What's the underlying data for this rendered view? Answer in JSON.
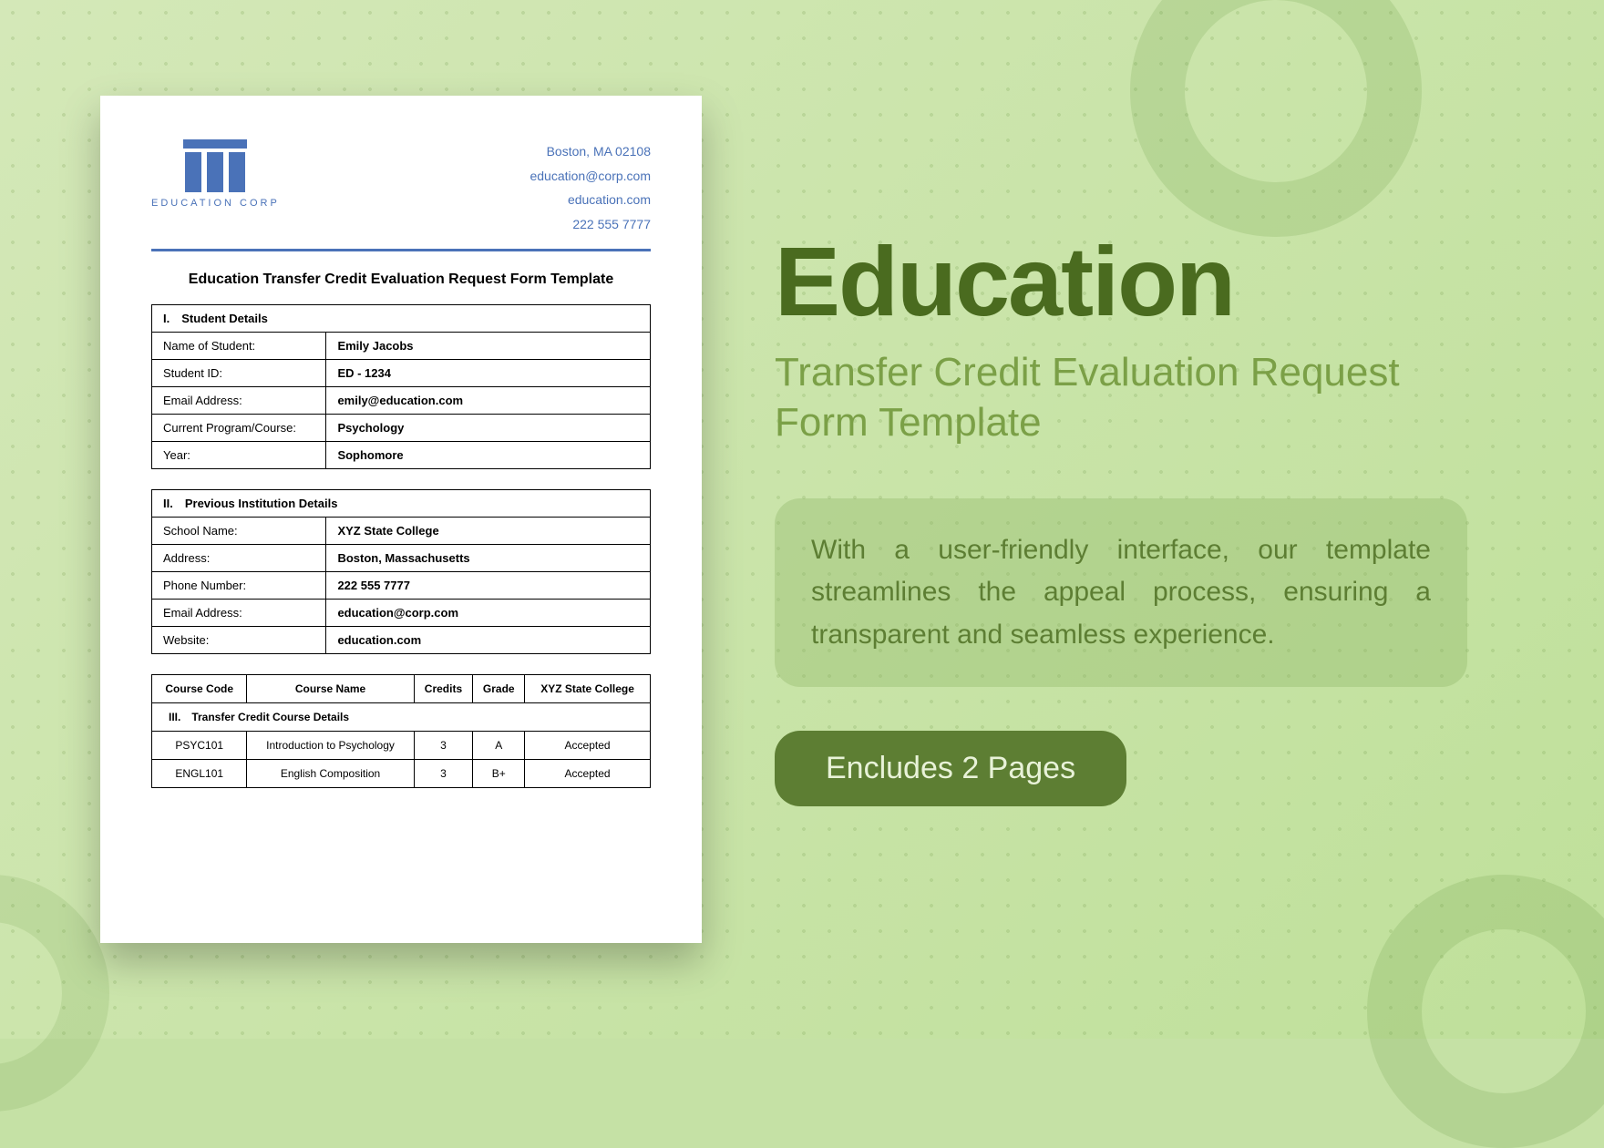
{
  "doc": {
    "logo_text": "EDUCATION CORP",
    "contact": {
      "address": "Boston, MA 02108",
      "email": "education@corp.com",
      "website": "education.com",
      "phone": "222 555 7777"
    },
    "title": "Education Transfer Credit Evaluation Request Form Template",
    "section1": {
      "heading": "I. Student Details",
      "rows": [
        {
          "label": "Name of Student:",
          "value": "Emily Jacobs"
        },
        {
          "label": "Student ID:",
          "value": "ED - 1234"
        },
        {
          "label": "Email Address:",
          "value": "emily@education.com"
        },
        {
          "label": "Current Program/Course:",
          "value": "Psychology"
        },
        {
          "label": "Year:",
          "value": "Sophomore"
        }
      ]
    },
    "section2": {
      "heading": "II. Previous Institution Details",
      "rows": [
        {
          "label": "School Name:",
          "value": "XYZ State College"
        },
        {
          "label": "Address:",
          "value": "Boston, Massachusetts"
        },
        {
          "label": "Phone Number:",
          "value": "222 555 7777"
        },
        {
          "label": "Email Address:",
          "value": "education@corp.com"
        },
        {
          "label": "Website:",
          "value": "education.com"
        }
      ]
    },
    "section3": {
      "heading": "III. Transfer Credit Course Details",
      "columns": [
        "Course Code",
        "Course Name",
        "Credits",
        "Grade",
        "XYZ State College"
      ],
      "rows": [
        [
          "PSYC101",
          "Introduction to Psychology",
          "3",
          "A",
          "Accepted"
        ],
        [
          "ENGL101",
          "English Composition",
          "3",
          "B+",
          "Accepted"
        ]
      ]
    }
  },
  "panel": {
    "title": "Education",
    "subtitle": "Transfer Credit Evaluation Request Form Template",
    "description": "With a user-friendly interface, our template streamlines the appeal process, ensuring a transparent and seamless experience.",
    "cta": "Encludes 2 Pages"
  },
  "colors": {
    "brand_blue": "#4a72b8",
    "dark_green": "#4a6b1f",
    "mid_green": "#7ba047",
    "olive": "#5d7e33"
  }
}
